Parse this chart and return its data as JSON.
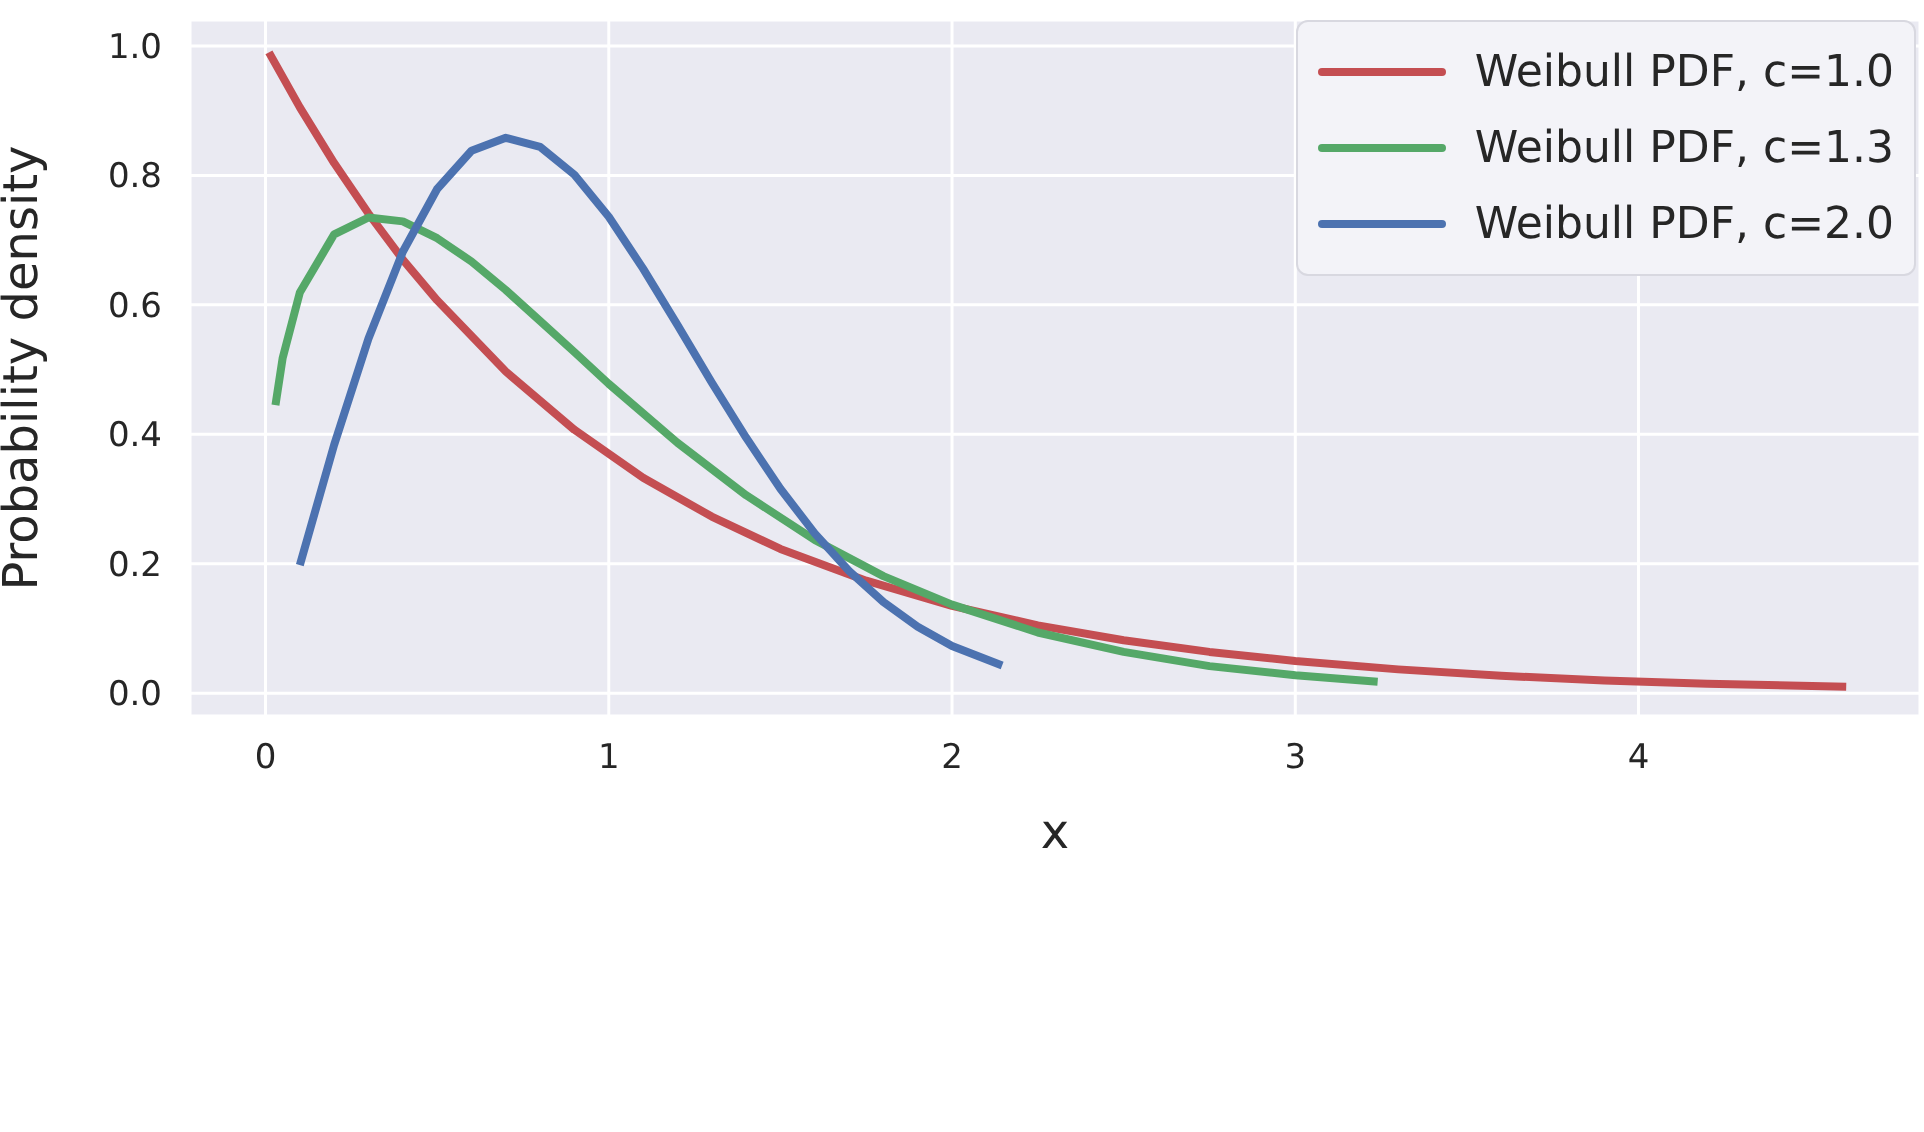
{
  "chart_data": {
    "type": "line",
    "xlabel": "x",
    "ylabel": "Probability density",
    "xlim": [
      -0.22,
      4.82
    ],
    "xticks": [
      0,
      1,
      2,
      3,
      4
    ],
    "ylim": [
      -0.035,
      1.04
    ],
    "yticks": [
      {
        "value": 0,
        "label": "0.0"
      },
      {
        "value": 0.2,
        "label": "0.2"
      },
      {
        "value": 0.4,
        "label": "0.4"
      },
      {
        "value": 0.6,
        "label": "0.6"
      },
      {
        "value": 0.8,
        "label": "0.8"
      },
      {
        "value": 1,
        "label": "1.0"
      }
    ],
    "grid": true,
    "legend": "top right",
    "marker": "none",
    "line_style": "solid",
    "series": [
      {
        "name": "Weibull PDF, c=1.0",
        "color": "#c44e52",
        "x": [
          0.01,
          0.1,
          0.2,
          0.3,
          0.4,
          0.5,
          0.7,
          0.9,
          1.1,
          1.3,
          1.5,
          1.75,
          2,
          2.25,
          2.5,
          2.75,
          3,
          3.3,
          3.6,
          3.9,
          4.2,
          4.605
        ],
        "values": [
          0.99,
          0.905,
          0.819,
          0.741,
          0.67,
          0.607,
          0.497,
          0.407,
          0.333,
          0.273,
          0.223,
          0.174,
          0.135,
          0.105,
          0.082,
          0.064,
          0.05,
          0.037,
          0.027,
          0.02,
          0.015,
          0.01
        ]
      },
      {
        "name": "Weibull PDF, c=1.3",
        "color": "#55a868",
        "x": [
          0.029,
          0.05,
          0.1,
          0.2,
          0.3,
          0.4,
          0.5,
          0.6,
          0.7,
          0.8,
          0.9,
          1,
          1.2,
          1.4,
          1.6,
          1.8,
          2,
          2.25,
          2.5,
          2.75,
          3,
          3.24
        ],
        "values": [
          0.445,
          0.518,
          0.619,
          0.709,
          0.735,
          0.729,
          0.703,
          0.667,
          0.623,
          0.575,
          0.527,
          0.478,
          0.387,
          0.306,
          0.237,
          0.181,
          0.137,
          0.094,
          0.064,
          0.042,
          0.028,
          0.018
        ]
      },
      {
        "name": "Weibull PDF, c=2.0",
        "color": "#4c72b0",
        "x": [
          0.1,
          0.2,
          0.3,
          0.4,
          0.5,
          0.6,
          0.7,
          0.8,
          0.9,
          1,
          1.1,
          1.2,
          1.3,
          1.4,
          1.5,
          1.6,
          1.7,
          1.8,
          1.9,
          2,
          2.146
        ],
        "values": [
          0.198,
          0.384,
          0.548,
          0.682,
          0.779,
          0.838,
          0.858,
          0.844,
          0.801,
          0.736,
          0.656,
          0.569,
          0.48,
          0.395,
          0.316,
          0.247,
          0.189,
          0.141,
          0.103,
          0.073,
          0.043
        ]
      }
    ]
  }
}
